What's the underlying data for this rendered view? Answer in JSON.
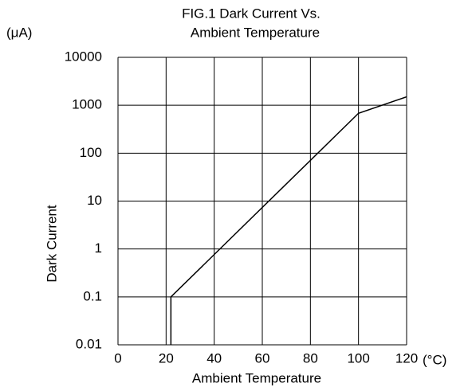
{
  "chart_data": {
    "type": "line",
    "title": [
      "FIG.1 Dark Current Vs.",
      "Ambient Temperature"
    ],
    "y_unit": "(μA)",
    "x_unit": "(°C)",
    "x_label": "Ambient Temperature",
    "y_label": "Dark Current",
    "x": [
      22,
      22,
      100,
      120
    ],
    "values": [
      0.01,
      0.1,
      680,
      1500
    ],
    "color": "#000000",
    "xlim": [
      0,
      120
    ],
    "xticks": [
      0,
      20,
      40,
      60,
      80,
      100,
      120
    ],
    "ylim": [
      0.01,
      10000
    ],
    "yticks": [
      0.01,
      0.1,
      1,
      10,
      100,
      1000,
      10000
    ],
    "log_y": true,
    "grid": true
  }
}
